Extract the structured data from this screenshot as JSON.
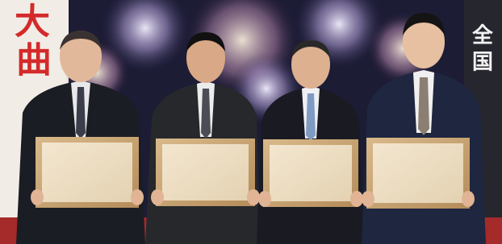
{
  "banners": {
    "left": [
      "大",
      "曲"
    ],
    "right": [
      "全",
      "国"
    ]
  }
}
